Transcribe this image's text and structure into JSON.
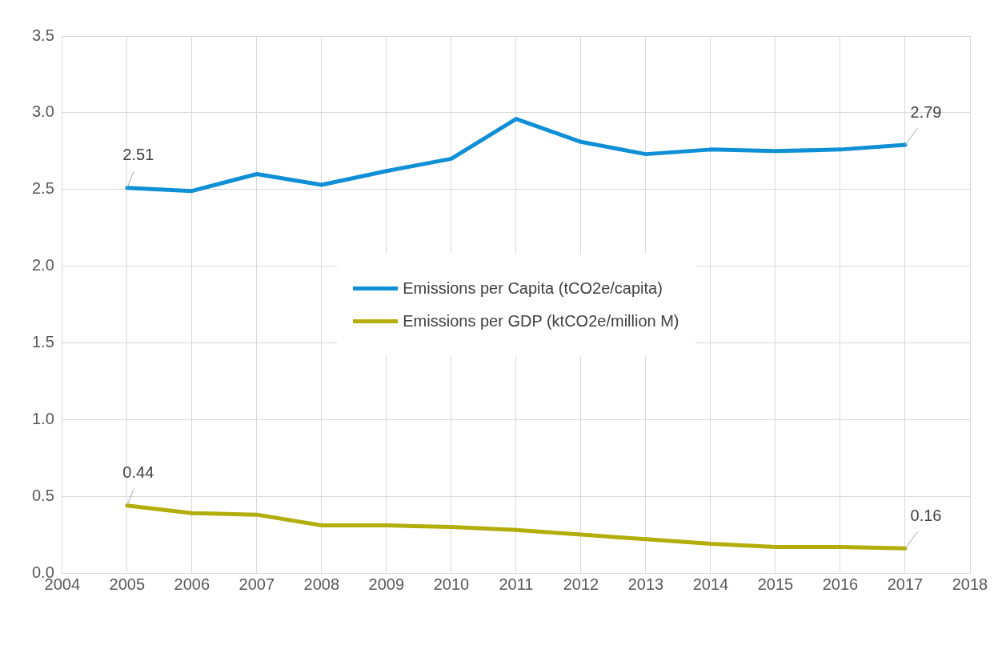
{
  "chart_data": {
    "type": "line",
    "x": [
      2005,
      2006,
      2007,
      2008,
      2009,
      2010,
      2011,
      2012,
      2013,
      2014,
      2015,
      2016,
      2017
    ],
    "series": [
      {
        "name": "Emissions per Capita (tCO2e/capita)",
        "color": "#0f8fd6",
        "values": [
          2.51,
          2.49,
          2.6,
          2.53,
          2.62,
          2.7,
          2.96,
          2.81,
          2.73,
          2.76,
          2.75,
          2.76,
          2.79
        ],
        "value_labels": [
          "2.51",
          null,
          null,
          null,
          null,
          null,
          null,
          null,
          null,
          null,
          null,
          null,
          "2.79"
        ]
      },
      {
        "name": "Emissions per GDP (ktCO2e/million M)",
        "color": "#b3ad0a",
        "values": [
          0.44,
          0.39,
          0.38,
          0.31,
          0.31,
          0.3,
          0.28,
          0.25,
          0.22,
          0.19,
          0.17,
          0.17,
          0.16
        ],
        "value_labels": [
          "0.44",
          null,
          null,
          null,
          null,
          null,
          null,
          null,
          null,
          null,
          null,
          null,
          "0.16"
        ]
      }
    ],
    "xlim": [
      2004,
      2018
    ],
    "xticks": [
      2004,
      2005,
      2006,
      2007,
      2008,
      2009,
      2010,
      2011,
      2012,
      2013,
      2014,
      2015,
      2016,
      2017,
      2018
    ],
    "ylim": [
      0,
      3.5
    ],
    "yticks": [
      {
        "value": 0,
        "label": "0.0"
      },
      {
        "value": 0.5,
        "label": "0.5"
      },
      {
        "value": 1,
        "label": "1.0"
      },
      {
        "value": 1.5,
        "label": "1.5"
      },
      {
        "value": 2,
        "label": "2.0"
      },
      {
        "value": 2.5,
        "label": "2.5"
      },
      {
        "value": 3,
        "label": "3.0"
      },
      {
        "value": 3.5,
        "label": "3.5"
      }
    ],
    "grid": true,
    "legend": "center",
    "marker": "none",
    "line_style": "solid"
  }
}
